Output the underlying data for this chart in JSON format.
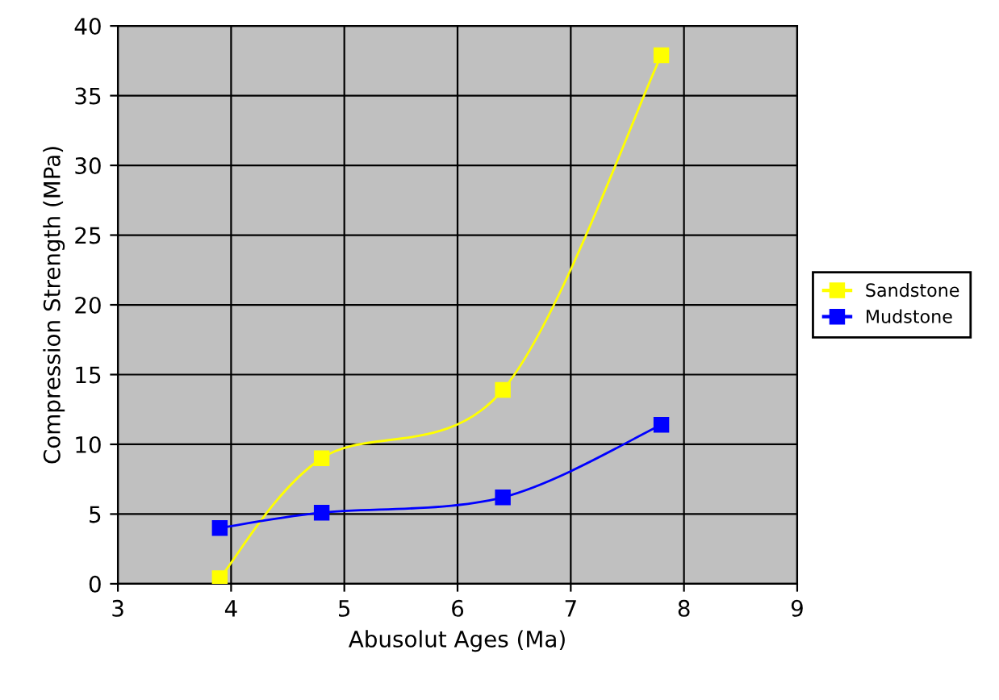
{
  "chart_data": {
    "type": "line",
    "xlabel": "Abusolut Ages (Ma)",
    "ylabel": "Compression Strength (MPa)",
    "x": [
      3.9,
      4.8,
      6.4,
      7.8
    ],
    "series": [
      {
        "name": "Sandstone",
        "color": "#ffff00",
        "values": [
          0.4,
          9.0,
          13.9,
          37.9
        ]
      },
      {
        "name": "Mudstone",
        "color": "#0000ff",
        "values": [
          4.0,
          5.1,
          6.2,
          11.4
        ]
      }
    ],
    "xlim": [
      3,
      9
    ],
    "xticks": [
      3,
      4,
      5,
      6,
      7,
      8,
      9
    ],
    "ylim": [
      0,
      40
    ],
    "yticks": [
      0,
      5,
      10,
      15,
      20,
      25,
      30,
      35,
      40
    ],
    "grid": true,
    "legend": "right",
    "marker": "square",
    "line_style": "solid"
  }
}
